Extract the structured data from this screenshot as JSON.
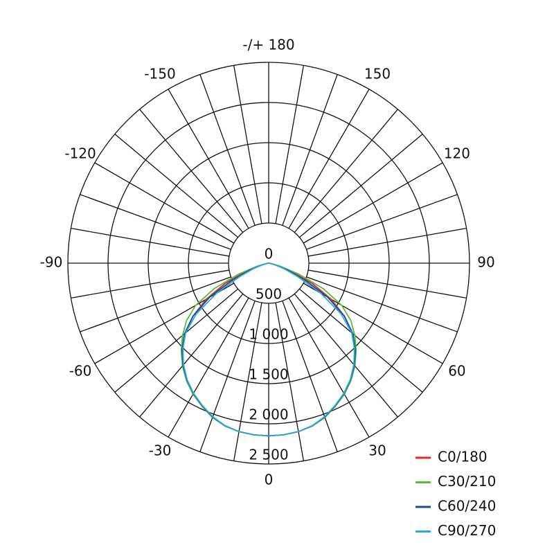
{
  "chart_data": {
    "type": "polar",
    "x": [
      -90,
      -85,
      -80,
      -75,
      -70,
      -65,
      -60,
      -55,
      -50,
      -45,
      -40,
      -35,
      -30,
      -25,
      -20,
      -15,
      -10,
      -5,
      0,
      5,
      10,
      15,
      20,
      25,
      30,
      35,
      40,
      45,
      50,
      55,
      60,
      65,
      70,
      75,
      80,
      85,
      90
    ],
    "series": [
      {
        "name": "C0/180",
        "color": "#e8262a",
        "values": [
          0,
          10,
          30,
          100,
          300,
          600,
          900,
          1150,
          1360,
          1520,
          1660,
          1780,
          1880,
          1960,
          2040,
          2100,
          2130,
          2145,
          2150,
          2145,
          2130,
          2100,
          2040,
          1960,
          1880,
          1780,
          1660,
          1520,
          1360,
          1150,
          900,
          600,
          300,
          100,
          30,
          10,
          0
        ]
      },
      {
        "name": "C30/210",
        "color": "#5cb83a",
        "values": [
          0,
          10,
          40,
          150,
          400,
          750,
          1050,
          1250,
          1400,
          1540,
          1670,
          1785,
          1885,
          1965,
          2045,
          2100,
          2130,
          2145,
          2150,
          2145,
          2130,
          2100,
          2045,
          1965,
          1885,
          1785,
          1670,
          1540,
          1400,
          1250,
          1050,
          750,
          400,
          150,
          40,
          10,
          0
        ]
      },
      {
        "name": "C60/240",
        "color": "#1a4f8b",
        "values": [
          0,
          10,
          30,
          90,
          250,
          500,
          850,
          1150,
          1370,
          1525,
          1660,
          1775,
          1875,
          1960,
          2040,
          2095,
          2130,
          2145,
          2150,
          2145,
          2130,
          2095,
          2040,
          1960,
          1875,
          1775,
          1660,
          1525,
          1370,
          1150,
          850,
          500,
          250,
          90,
          30,
          10,
          0
        ]
      },
      {
        "name": "C90/270",
        "color": "#29a9e0",
        "values": [
          0,
          10,
          30,
          80,
          200,
          400,
          750,
          1100,
          1350,
          1510,
          1650,
          1770,
          1870,
          1955,
          2035,
          2095,
          2130,
          2145,
          2150,
          2145,
          2130,
          2095,
          2035,
          1955,
          1870,
          1770,
          1650,
          1510,
          1350,
          1100,
          750,
          400,
          200,
          80,
          30,
          10,
          0
        ]
      }
    ],
    "rlim": [
      0,
      2500
    ],
    "rticks": [
      0,
      500,
      {
        "value": 1000,
        "label": "1 000"
      },
      {
        "value": 1500,
        "label": "1 500"
      },
      {
        "value": 2000,
        "label": "2 000"
      },
      {
        "value": 2500,
        "label": "2 500"
      }
    ],
    "angle_ticks": [
      0,
      30,
      60,
      90,
      120,
      150,
      {
        "value": 180,
        "label": "-/+ 180"
      },
      -150,
      -120,
      -90,
      -60,
      -30
    ],
    "legend": "bottom-right"
  }
}
